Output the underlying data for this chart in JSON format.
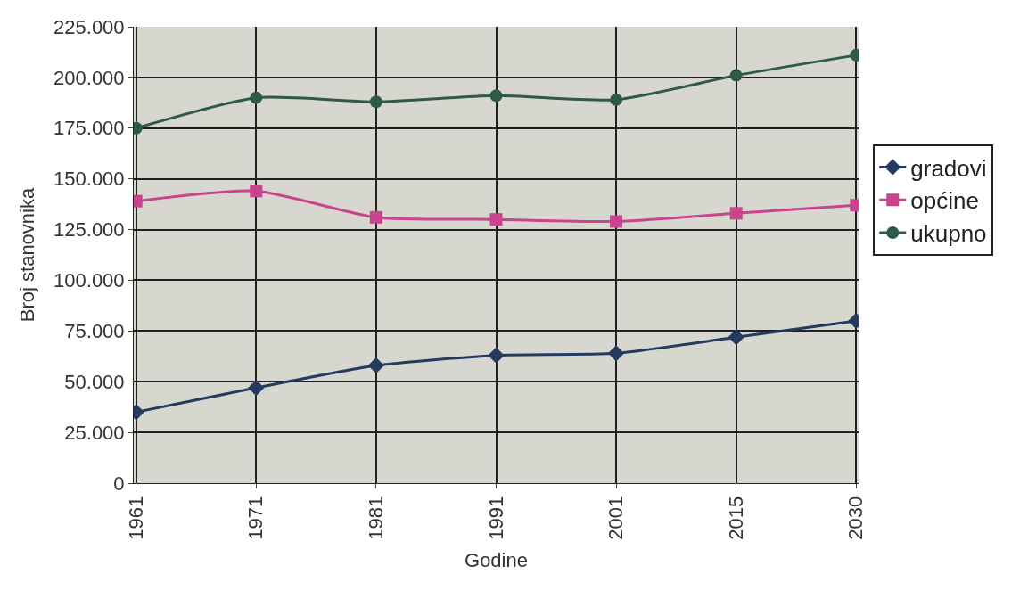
{
  "chart_data": {
    "type": "line",
    "xlabel": "Godine",
    "ylabel": "Broj stanovnika",
    "categories": [
      "1961",
      "1971",
      "1981",
      "1991",
      "2001",
      "2015",
      "2030"
    ],
    "series": [
      {
        "name": "gradovi",
        "color": "#253a5e",
        "marker": "diamond",
        "values": [
          35000,
          47000,
          58000,
          63000,
          64000,
          72000,
          80000
        ]
      },
      {
        "name": "općine",
        "color": "#c8448c",
        "marker": "square",
        "values": [
          139000,
          144000,
          131000,
          130000,
          129000,
          133000,
          137000
        ]
      },
      {
        "name": "ukupno",
        "color": "#2e5a48",
        "marker": "circle",
        "values": [
          175000,
          190000,
          188000,
          191000,
          189000,
          201000,
          211000
        ]
      }
    ],
    "ylim": [
      0,
      225000
    ],
    "yticks": [
      {
        "value": 0,
        "label": "0"
      },
      {
        "value": 25000,
        "label": "25.000"
      },
      {
        "value": 50000,
        "label": "50.000"
      },
      {
        "value": 75000,
        "label": "75.000"
      },
      {
        "value": 100000,
        "label": "100.000"
      },
      {
        "value": 125000,
        "label": "125.000"
      },
      {
        "value": 150000,
        "label": "150.000"
      },
      {
        "value": 175000,
        "label": "175.000"
      },
      {
        "value": 200000,
        "label": "200.000"
      },
      {
        "value": 225000,
        "label": "225.000"
      }
    ],
    "grid": true,
    "legend": "right",
    "line_style": "solid"
  }
}
